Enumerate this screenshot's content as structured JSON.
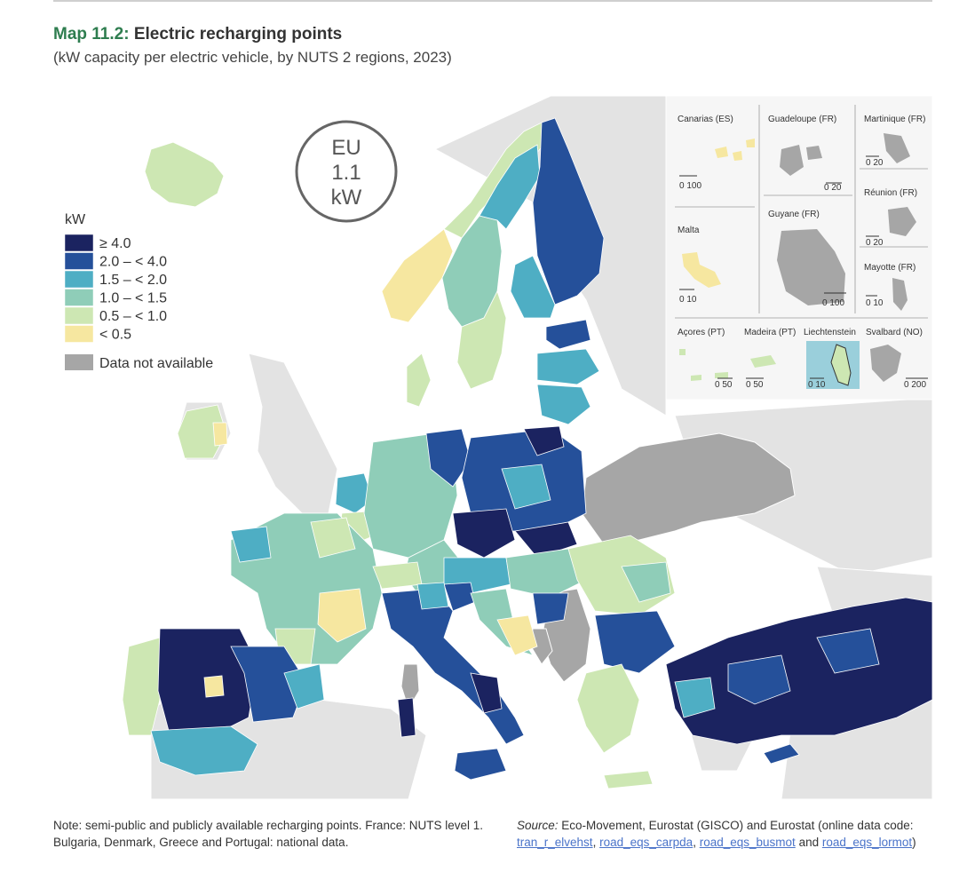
{
  "header": {
    "map_label": "Map 11.2:",
    "title": "Electric recharging points",
    "subtitle": "(kW capacity per electric vehicle, by NUTS 2 regions, 2023)"
  },
  "badge": {
    "line1": "EU",
    "line2": "1.1",
    "line3": "kW"
  },
  "legend": {
    "unit": "kW",
    "classes": [
      {
        "label": "≥ 4.0",
        "color": "#1b2360"
      },
      {
        "label": "2.0 – < 4.0",
        "color": "#25509a"
      },
      {
        "label": "1.5 – < 2.0",
        "color": "#4eaec4"
      },
      {
        "label": "1.0 – < 1.5",
        "color": "#8fcdb8"
      },
      {
        "label": "0.5 – < 1.0",
        "color": "#cde7b3"
      },
      {
        "label": "< 0.5",
        "color": "#f6e7a0"
      }
    ],
    "na_label": "Data not available",
    "na_color": "#a6a6a6"
  },
  "insets": {
    "canarias": {
      "name": "Canarias (ES)",
      "scale": "0  100"
    },
    "guadeloupe": {
      "name": "Guadeloupe (FR)",
      "scale": "0  20"
    },
    "martinique": {
      "name": "Martinique (FR)",
      "scale": "0  20"
    },
    "reunion": {
      "name": "Réunion (FR)",
      "scale": "0  20"
    },
    "malta": {
      "name": "Malta",
      "scale": "0  10"
    },
    "guyane": {
      "name": "Guyane (FR)",
      "scale": "0   100"
    },
    "mayotte": {
      "name": "Mayotte (FR)",
      "scale": "0 10"
    },
    "acores": {
      "name": "Açores (PT)",
      "scale": "0  50"
    },
    "madeira": {
      "name": "Madeira (PT)",
      "scale": "0    50"
    },
    "liechtenstein": {
      "name": "Liechtenstein",
      "scale": "0  10"
    },
    "svalbard": {
      "name": "Svalbard (NO)",
      "scale": "0  200"
    }
  },
  "footer": {
    "note": "Note: semi-public and publicly available recharging points. France: NUTS level 1. Bulgaria, Denmark, Greece and Portugal: national data.",
    "source_label": "Source:",
    "source_text": "Eco-Movement, Eurostat (GISCO) and Eurostat (online data code:",
    "codes": [
      "tran_r_elvehst",
      "road_eqs_carpda",
      "road_eqs_busmot",
      "road_eqs_lormot"
    ],
    "sep1": ",",
    "sep2": ",",
    "and_text": "and",
    "close": ")"
  }
}
